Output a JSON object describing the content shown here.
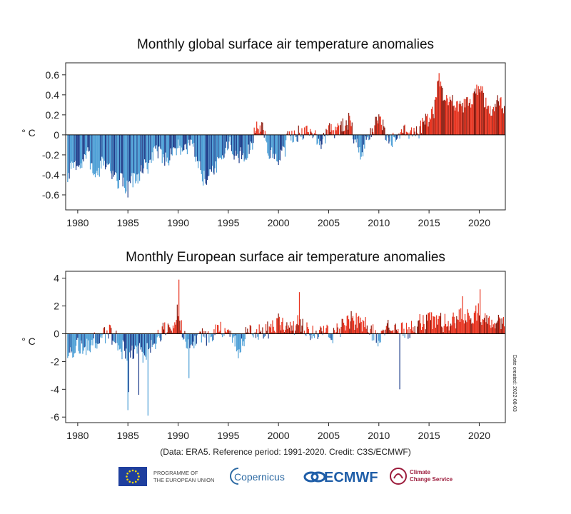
{
  "chart_data": [
    {
      "type": "bar",
      "title": "Monthly global surface air temperature anomalies",
      "ylabel": "° C",
      "xlim": [
        1978.8,
        2022.6
      ],
      "ylim": [
        -0.75,
        0.72
      ],
      "x_ticks": [
        1980,
        1985,
        1990,
        1995,
        2000,
        2005,
        2010,
        2015,
        2020
      ],
      "y_ticks": [
        0.6,
        0.4,
        0.2,
        0,
        -0.2,
        -0.4,
        -0.6
      ],
      "y_tick_labels": [
        "0.6",
        "0.4",
        "0.2",
        "0",
        "-0.2",
        "-0.4",
        "-0.6"
      ],
      "x_tick_labels": [
        "1980",
        "1985",
        "1990",
        "1995",
        "2000",
        "2005",
        "2010",
        "2015",
        "2020"
      ],
      "colors": {
        "positive": "#e8321e",
        "positive_dark": "#8b1a0e",
        "negative": "#4d9fd6",
        "negative_dark": "#1f3f8c"
      },
      "monthly_anchors": [
        [
          1979.0,
          -0.45
        ],
        [
          1979.5,
          -0.3
        ],
        [
          1980.0,
          -0.35
        ],
        [
          1980.5,
          -0.25
        ],
        [
          1981.0,
          -0.2
        ],
        [
          1981.5,
          -0.35
        ],
        [
          1982.0,
          -0.4
        ],
        [
          1982.5,
          -0.3
        ],
        [
          1983.0,
          -0.25
        ],
        [
          1983.5,
          -0.4
        ],
        [
          1984.0,
          -0.45
        ],
        [
          1984.5,
          -0.45
        ],
        [
          1985.0,
          -0.55
        ],
        [
          1985.5,
          -0.45
        ],
        [
          1986.0,
          -0.45
        ],
        [
          1986.5,
          -0.35
        ],
        [
          1987.0,
          -0.3
        ],
        [
          1987.5,
          -0.2
        ],
        [
          1988.0,
          -0.15
        ],
        [
          1988.5,
          -0.2
        ],
        [
          1989.0,
          -0.25
        ],
        [
          1989.5,
          -0.2
        ],
        [
          1990.0,
          -0.1
        ],
        [
          1990.5,
          -0.15
        ],
        [
          1991.0,
          -0.1
        ],
        [
          1991.5,
          -0.15
        ],
        [
          1992.0,
          -0.3
        ],
        [
          1992.5,
          -0.45
        ],
        [
          1993.0,
          -0.4
        ],
        [
          1993.5,
          -0.35
        ],
        [
          1994.0,
          -0.3
        ],
        [
          1994.5,
          -0.2
        ],
        [
          1995.0,
          -0.1
        ],
        [
          1995.5,
          -0.15
        ],
        [
          1996.0,
          -0.25
        ],
        [
          1996.5,
          -0.2
        ],
        [
          1997.0,
          -0.15
        ],
        [
          1997.5,
          -0.05
        ],
        [
          1998.0,
          0.12
        ],
        [
          1998.5,
          0.05
        ],
        [
          1999.0,
          -0.15
        ],
        [
          1999.5,
          -0.2
        ],
        [
          2000.0,
          -0.25
        ],
        [
          2000.5,
          -0.15
        ],
        [
          2001.0,
          -0.05
        ],
        [
          2001.5,
          0.0
        ],
        [
          2002.0,
          0.05
        ],
        [
          2002.5,
          0.02
        ],
        [
          2003.0,
          0.05
        ],
        [
          2003.5,
          0.02
        ],
        [
          2004.0,
          -0.05
        ],
        [
          2004.5,
          -0.02
        ],
        [
          2005.0,
          0.08
        ],
        [
          2005.5,
          0.05
        ],
        [
          2006.0,
          0.05
        ],
        [
          2006.5,
          0.1
        ],
        [
          2007.0,
          0.15
        ],
        [
          2007.5,
          0.02
        ],
        [
          2008.0,
          -0.2
        ],
        [
          2008.5,
          -0.1
        ],
        [
          2009.0,
          0.0
        ],
        [
          2009.5,
          0.05
        ],
        [
          2010.0,
          0.2
        ],
        [
          2010.5,
          0.08
        ],
        [
          2011.0,
          -0.1
        ],
        [
          2011.5,
          -0.05
        ],
        [
          2012.0,
          -0.05
        ],
        [
          2012.5,
          0.05
        ],
        [
          2013.0,
          0.05
        ],
        [
          2013.5,
          0.05
        ],
        [
          2014.0,
          0.05
        ],
        [
          2014.5,
          0.12
        ],
        [
          2015.0,
          0.15
        ],
        [
          2015.5,
          0.25
        ],
        [
          2016.0,
          0.55
        ],
        [
          2016.5,
          0.35
        ],
        [
          2017.0,
          0.35
        ],
        [
          2017.5,
          0.3
        ],
        [
          2018.0,
          0.3
        ],
        [
          2018.5,
          0.3
        ],
        [
          2019.0,
          0.35
        ],
        [
          2019.5,
          0.4
        ],
        [
          2020.0,
          0.5
        ],
        [
          2020.5,
          0.35
        ],
        [
          2021.0,
          0.25
        ],
        [
          2021.5,
          0.3
        ],
        [
          2022.0,
          0.3
        ],
        [
          2022.5,
          0.32
        ]
      ]
    },
    {
      "type": "bar",
      "title": "Monthly European surface air temperature anomalies",
      "ylabel": "° C",
      "xlim": [
        1978.8,
        2022.6
      ],
      "ylim": [
        -6.4,
        4.5
      ],
      "x_ticks": [
        1980,
        1985,
        1990,
        1995,
        2000,
        2005,
        2010,
        2015,
        2020
      ],
      "y_ticks": [
        4,
        2,
        0,
        -2,
        -4,
        -6
      ],
      "y_tick_labels": [
        "4",
        "2",
        "0",
        "-2",
        "-4",
        "-6"
      ],
      "x_tick_labels": [
        "1980",
        "1985",
        "1990",
        "1995",
        "2000",
        "2005",
        "2010",
        "2015",
        "2020"
      ],
      "colors": {
        "positive": "#e8321e",
        "positive_dark": "#8b1a0e",
        "negative": "#4d9fd6",
        "negative_dark": "#1f3f8c"
      },
      "monthly_anchors": [
        [
          1979.0,
          -1.2
        ],
        [
          1980.0,
          -1.0
        ],
        [
          1981.0,
          -0.8
        ],
        [
          1982.0,
          -0.4
        ],
        [
          1983.0,
          0.1
        ],
        [
          1984.0,
          -0.6
        ],
        [
          1985.0,
          -1.6
        ],
        [
          1986.0,
          -1.2
        ],
        [
          1987.0,
          -1.4
        ],
        [
          1988.0,
          -0.2
        ],
        [
          1989.0,
          0.4
        ],
        [
          1990.0,
          0.8
        ],
        [
          1991.0,
          -0.6
        ],
        [
          1992.0,
          0.0
        ],
        [
          1993.0,
          -0.4
        ],
        [
          1994.0,
          0.3
        ],
        [
          1995.0,
          0.1
        ],
        [
          1996.0,
          -0.9
        ],
        [
          1997.0,
          0.0
        ],
        [
          1998.0,
          0.0
        ],
        [
          1999.0,
          0.3
        ],
        [
          2000.0,
          0.6
        ],
        [
          2001.0,
          0.3
        ],
        [
          2002.0,
          0.6
        ],
        [
          2003.0,
          0.4
        ],
        [
          2004.0,
          0.1
        ],
        [
          2005.0,
          0.0
        ],
        [
          2006.0,
          0.3
        ],
        [
          2007.0,
          1.1
        ],
        [
          2008.0,
          0.6
        ],
        [
          2009.0,
          0.4
        ],
        [
          2010.0,
          -0.4
        ],
        [
          2011.0,
          0.6
        ],
        [
          2012.0,
          0.3
        ],
        [
          2013.0,
          0.1
        ],
        [
          2014.0,
          1.0
        ],
        [
          2015.0,
          0.9
        ],
        [
          2016.0,
          0.8
        ],
        [
          2017.0,
          0.8
        ],
        [
          2018.0,
          1.1
        ],
        [
          2019.0,
          1.1
        ],
        [
          2020.0,
          1.4
        ],
        [
          2021.0,
          0.6
        ],
        [
          2022.0,
          1.1
        ],
        [
          2022.6,
          1.0
        ]
      ],
      "notable_extremes": [
        [
          1985.0,
          -5.5
        ],
        [
          1985.1,
          -4.2
        ],
        [
          1986.1,
          -4.4
        ],
        [
          1987.0,
          -5.9
        ],
        [
          1991.1,
          -3.2
        ],
        [
          1990.1,
          3.9
        ],
        [
          1989.9,
          2.1
        ],
        [
          2002.1,
          3.0
        ],
        [
          2012.1,
          -4.0
        ],
        [
          2020.1,
          3.2
        ],
        [
          2018.3,
          2.7
        ]
      ]
    }
  ],
  "credit": "(Data: ERA5.  Reference period: 1991-2020.  Credit: C3S/ECMWF)",
  "date_created": "Date created: 2022-08-03",
  "logos": {
    "eu_line1": "PROGRAMME OF",
    "eu_line2": "THE EUROPEAN UNION",
    "copernicus": "Copernicus",
    "ecmwf": "ECMWF",
    "climate_line1": "Climate",
    "climate_line2": "Change Service"
  }
}
